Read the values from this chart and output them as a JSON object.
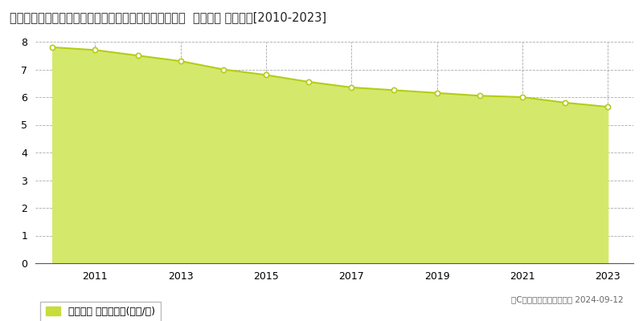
{
  "title": "和歌山県伊都郡高野町大字高野山字奥ノ院４９番１００  地価公示 地価推移[2010-2023]",
  "years": [
    2010,
    2011,
    2012,
    2013,
    2014,
    2015,
    2016,
    2017,
    2018,
    2019,
    2020,
    2021,
    2022,
    2023
  ],
  "values": [
    7.8,
    7.7,
    7.5,
    7.3,
    7.0,
    6.8,
    6.55,
    6.35,
    6.25,
    6.15,
    6.05,
    6.0,
    5.8,
    5.65
  ],
  "line_color": "#b5cc18",
  "fill_color": "#d4e96b",
  "fill_alpha": 1.0,
  "marker_color": "white",
  "marker_edge_color": "#b5cc18",
  "grid_color": "#aaaaaa",
  "background_color": "#ffffff",
  "ylim": [
    0,
    8
  ],
  "yticks": [
    0,
    1,
    2,
    3,
    4,
    5,
    6,
    7,
    8
  ],
  "legend_label": "地価公示 平均坪単価(万円/坪)",
  "legend_square_color": "#c8dc3c",
  "copyright_text": "（C）土地価格ドットコム 2024-09-12",
  "title_fontsize": 10.5,
  "tick_fontsize": 9,
  "legend_fontsize": 9,
  "xtick_labels": [
    2011,
    2013,
    2015,
    2017,
    2019,
    2021,
    2023
  ]
}
